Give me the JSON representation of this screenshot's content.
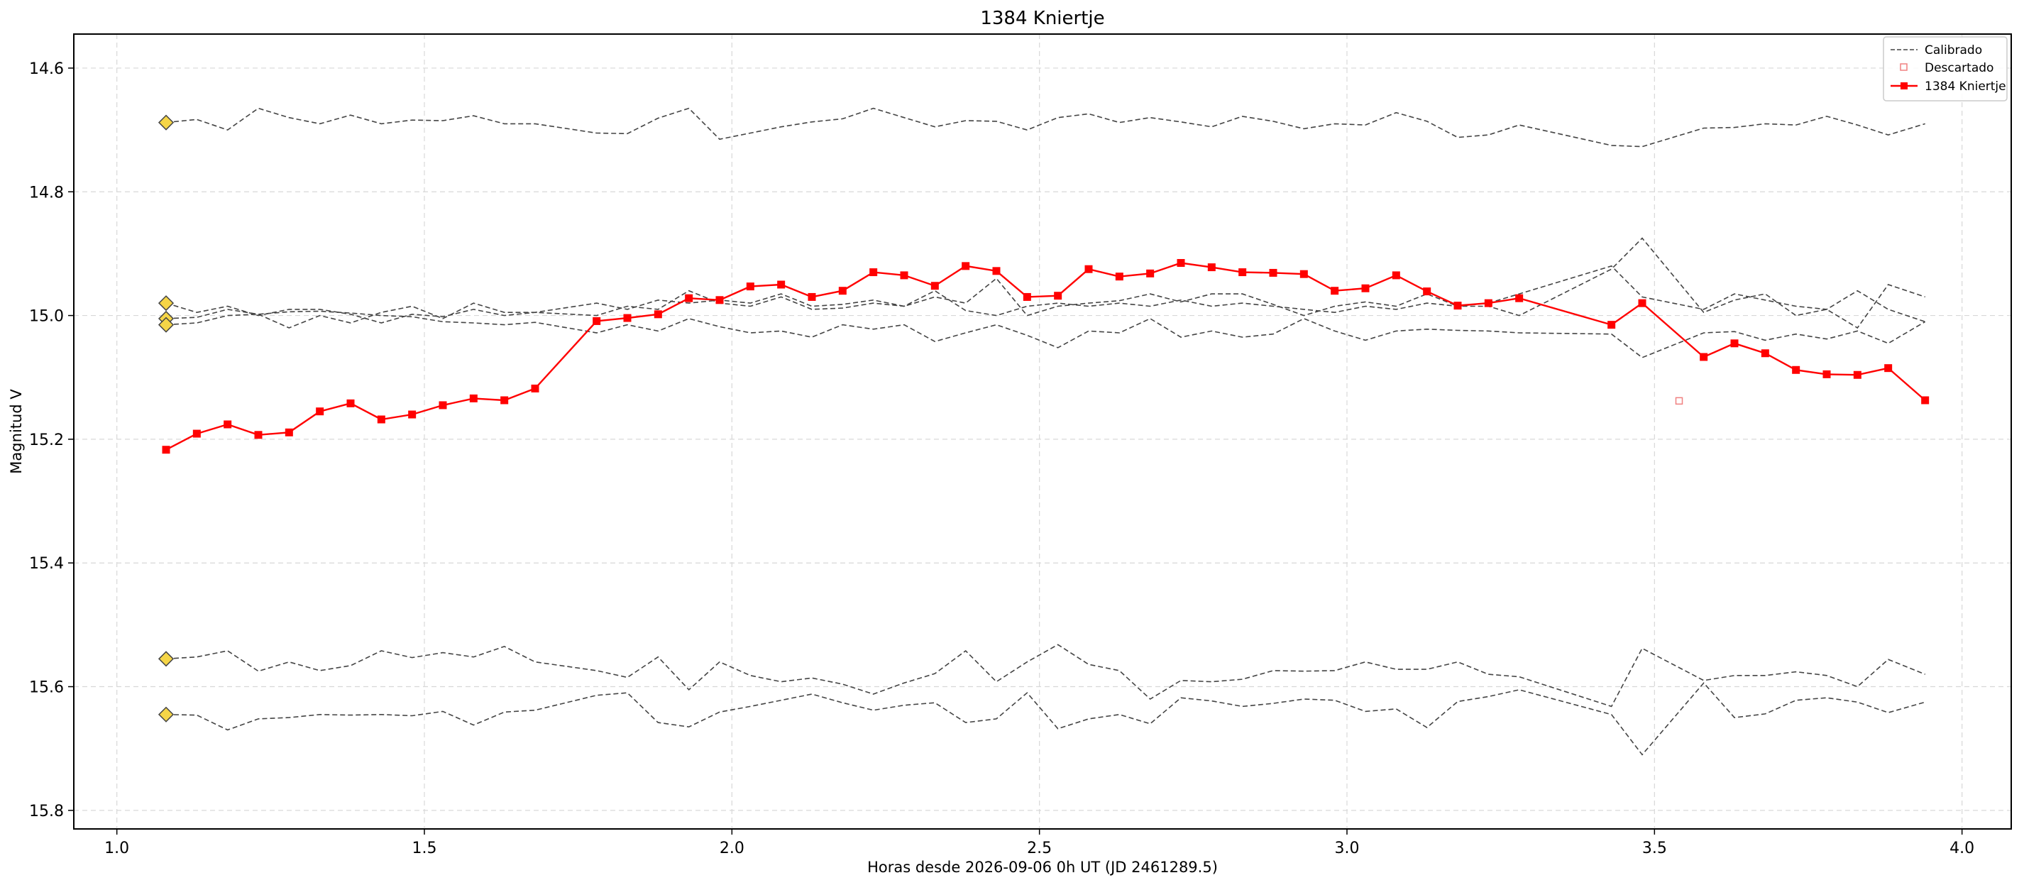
{
  "chart_data": {
    "type": "line",
    "title": "1384 Kniertje",
    "xlabel": "Horas desde 2026-09-06 0h UT (JD 2461289.5)",
    "ylabel": "Magnitud V",
    "xlim": [
      0.93,
      4.08
    ],
    "ylim": [
      15.83,
      14.545
    ],
    "y_inverted": true,
    "xticks": [
      1.0,
      1.5,
      2.0,
      2.5,
      3.0,
      3.5,
      4.0
    ],
    "xtick_labels": [
      "1.0",
      "1.5",
      "2.0",
      "2.5",
      "3.0",
      "3.5",
      "4.0"
    ],
    "yticks": [
      14.6,
      14.8,
      15.0,
      15.2,
      15.4,
      15.6,
      15.8
    ],
    "ytick_labels": [
      "14.6",
      "14.8",
      "15.0",
      "15.2",
      "15.4",
      "15.6",
      "15.8"
    ],
    "grid": true,
    "legend_position": "top-right",
    "legend": [
      "Calibrado",
      "Descartado",
      "1384 Kniertje"
    ],
    "colors": {
      "target": "#ff0000",
      "calibrators": "#444444",
      "marker_fill": "#f5d547",
      "marker_edge": "#444444",
      "discarded": "#f08080"
    },
    "x": [
      1.08,
      1.13,
      1.18,
      1.23,
      1.28,
      1.33,
      1.38,
      1.43,
      1.48,
      1.53,
      1.58,
      1.63,
      1.68,
      1.78,
      1.83,
      1.88,
      1.93,
      1.98,
      2.03,
      2.08,
      2.13,
      2.18,
      2.23,
      2.28,
      2.33,
      2.38,
      2.43,
      2.48,
      2.53,
      2.58,
      2.63,
      2.68,
      2.73,
      2.78,
      2.83,
      2.88,
      2.93,
      2.98,
      3.03,
      3.08,
      3.13,
      3.18,
      3.23,
      3.28,
      3.43,
      3.48,
      3.58,
      3.63,
      3.68,
      3.73,
      3.78,
      3.83,
      3.88,
      3.94
    ],
    "series": [
      {
        "name": "1384 Kniertje",
        "role": "target",
        "values": [
          15.217,
          15.191,
          15.176,
          15.193,
          15.189,
          15.155,
          15.142,
          15.168,
          15.16,
          15.145,
          15.134,
          15.137,
          15.118,
          15.009,
          15.004,
          14.998,
          14.972,
          14.975,
          14.953,
          14.95,
          14.97,
          14.96,
          14.93,
          14.935,
          14.952,
          14.92,
          14.928,
          14.97,
          14.968,
          14.925,
          14.937,
          14.932,
          14.915,
          14.922,
          14.93,
          14.931,
          14.933,
          14.96,
          14.956,
          14.935,
          14.961,
          14.984,
          14.98,
          14.972,
          15.015,
          14.98,
          15.067,
          15.045,
          15.061,
          15.088,
          15.095,
          15.096,
          15.085,
          15.137
        ]
      },
      {
        "name": "Calibrado",
        "role": "calibrator",
        "values": [
          14.688,
          14.683,
          14.7,
          14.665,
          14.68,
          14.69,
          14.676,
          14.69,
          14.684,
          14.685,
          14.677,
          14.69,
          14.69,
          14.705,
          14.706,
          14.681,
          14.665,
          14.715,
          14.705,
          14.695,
          14.687,
          14.682,
          14.665,
          14.68,
          14.695,
          14.685,
          14.686,
          14.7,
          14.68,
          14.674,
          14.688,
          14.68,
          14.687,
          14.695,
          14.678,
          14.686,
          14.698,
          14.69,
          14.692,
          14.672,
          14.686,
          14.712,
          14.708,
          14.692,
          14.725,
          14.727,
          14.697,
          14.696,
          14.69,
          14.692,
          14.678,
          14.692,
          14.708,
          14.69
        ]
      },
      {
        "name": "Calibrado",
        "role": "calibrator",
        "values": [
          14.98,
          14.995,
          14.985,
          15.0,
          14.99,
          14.99,
          14.998,
          15.012,
          14.998,
          15.002,
          14.99,
          15.0,
          14.995,
          14.98,
          14.99,
          14.975,
          14.98,
          14.975,
          14.98,
          14.965,
          14.985,
          14.982,
          14.975,
          14.985,
          14.97,
          14.98,
          14.94,
          15.0,
          14.985,
          14.98,
          14.976,
          14.965,
          14.978,
          14.965,
          14.965,
          14.982,
          15.0,
          14.985,
          14.978,
          14.985,
          14.965,
          14.985,
          14.98,
          14.965,
          14.92,
          14.97,
          14.99,
          14.965,
          14.975,
          14.985,
          14.99,
          14.96,
          14.99,
          15.01
        ]
      },
      {
        "name": "Calibrado",
        "role": "calibrator",
        "values": [
          15.005,
          15.003,
          14.99,
          14.998,
          15.02,
          15.0,
          15.012,
          14.995,
          14.985,
          15.005,
          14.98,
          14.995,
          14.995,
          15.0,
          14.985,
          14.99,
          14.96,
          14.98,
          14.985,
          14.97,
          14.99,
          14.988,
          14.98,
          14.985,
          14.96,
          14.992,
          15.0,
          14.985,
          14.98,
          14.985,
          14.98,
          14.985,
          14.975,
          14.985,
          14.98,
          14.985,
          14.99,
          14.995,
          14.985,
          14.99,
          14.98,
          14.985,
          14.985,
          15.0,
          14.925,
          14.875,
          14.995,
          14.975,
          14.965,
          15.0,
          14.99,
          15.02,
          14.95,
          14.97
        ]
      },
      {
        "name": "Calibrado",
        "role": "calibrator",
        "values": [
          15.015,
          15.012,
          15.0,
          14.998,
          14.994,
          14.993,
          14.996,
          15.0,
          15.002,
          15.01,
          15.012,
          15.015,
          15.011,
          15.028,
          15.015,
          15.025,
          15.005,
          15.018,
          15.028,
          15.025,
          15.035,
          15.015,
          15.022,
          15.015,
          15.042,
          15.028,
          15.015,
          15.032,
          15.052,
          15.025,
          15.028,
          15.005,
          15.035,
          15.025,
          15.035,
          15.03,
          15.005,
          15.025,
          15.04,
          15.025,
          15.022,
          15.024,
          15.025,
          15.028,
          15.03,
          15.068,
          15.028,
          15.026,
          15.04,
          15.03,
          15.038,
          15.025,
          15.045,
          15.01
        ]
      },
      {
        "name": "Calibrado",
        "role": "calibrator",
        "values": [
          15.555,
          15.552,
          15.542,
          15.575,
          15.56,
          15.574,
          15.566,
          15.542,
          15.553,
          15.545,
          15.552,
          15.535,
          15.56,
          15.574,
          15.585,
          15.552,
          15.605,
          15.56,
          15.582,
          15.592,
          15.586,
          15.596,
          15.612,
          15.594,
          15.579,
          15.542,
          15.592,
          15.56,
          15.532,
          15.564,
          15.574,
          15.62,
          15.59,
          15.592,
          15.588,
          15.574,
          15.575,
          15.574,
          15.56,
          15.572,
          15.572,
          15.56,
          15.58,
          15.584,
          15.632,
          15.538,
          15.59,
          15.582,
          15.582,
          15.576,
          15.582,
          15.6,
          15.556,
          15.58
        ]
      },
      {
        "name": "Calibrado",
        "role": "calibrator",
        "values": [
          15.645,
          15.646,
          15.67,
          15.652,
          15.65,
          15.645,
          15.646,
          15.645,
          15.647,
          15.64,
          15.662,
          15.641,
          15.638,
          15.614,
          15.61,
          15.658,
          15.665,
          15.641,
          15.632,
          15.622,
          15.612,
          15.626,
          15.638,
          15.63,
          15.626,
          15.658,
          15.652,
          15.61,
          15.668,
          15.652,
          15.645,
          15.66,
          15.618,
          15.623,
          15.632,
          15.627,
          15.62,
          15.622,
          15.64,
          15.636,
          15.666,
          15.624,
          15.616,
          15.605,
          15.645,
          15.71,
          15.594,
          15.65,
          15.644,
          15.622,
          15.618,
          15.625,
          15.642,
          15.625
        ]
      }
    ],
    "diamond_markers": {
      "x": 1.08,
      "values": [
        14.688,
        14.98,
        15.005,
        15.015,
        15.555,
        15.645
      ]
    },
    "discarded_points": [
      {
        "x": 3.54,
        "y": 15.138
      }
    ]
  }
}
